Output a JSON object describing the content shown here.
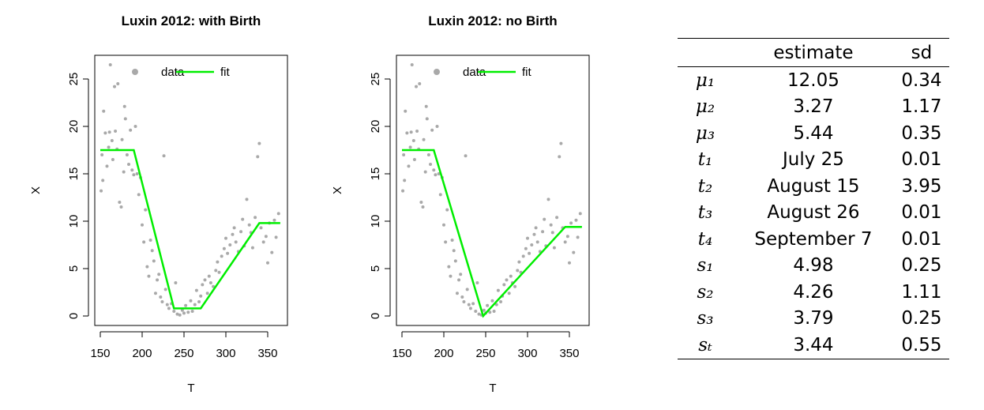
{
  "chart_data": [
    {
      "type": "scatter",
      "title": "Luxin 2012: with Birth",
      "x_label": "T",
      "y_label": "X",
      "xlim": [
        143.4,
        373.6
      ],
      "ylim": [
        -1,
        27.5
      ],
      "xticks": [
        150,
        200,
        250,
        300,
        350
      ],
      "yticks": [
        0,
        5,
        10,
        15,
        20,
        25
      ],
      "legend": "top",
      "series": [
        {
          "name": "data",
          "type": "scatter",
          "color": "#a9a9a9",
          "x": [
            151,
            152,
            153,
            154,
            156,
            158,
            160,
            161,
            162,
            164,
            165,
            167,
            168,
            170,
            171,
            173,
            175,
            176,
            178,
            179,
            180,
            182,
            184,
            186,
            188,
            190,
            192,
            194,
            196,
            198,
            200,
            202,
            204,
            206,
            208,
            210,
            212,
            214,
            216,
            218,
            220,
            222,
            224,
            226,
            228,
            230,
            232,
            235,
            238,
            240,
            242,
            245,
            248,
            250,
            252,
            255,
            258,
            260,
            263,
            265,
            268,
            270,
            272,
            275,
            278,
            280,
            282,
            285,
            288,
            290,
            292,
            295,
            298,
            300,
            302,
            305,
            308,
            310,
            312,
            315,
            318,
            320,
            322,
            325,
            328,
            330,
            332,
            335,
            338,
            340,
            342,
            345,
            348,
            350,
            352,
            355,
            358,
            360,
            363
          ],
          "values": [
            13.2,
            17,
            14.3,
            21.6,
            19.3,
            15.8,
            17.8,
            19.4,
            26.5,
            18.5,
            16.5,
            24.2,
            19.5,
            17.6,
            24.5,
            12,
            11.5,
            18.6,
            15.2,
            22.1,
            20.8,
            17,
            16,
            19.6,
            15.4,
            14.9,
            20,
            15,
            12.8,
            14.6,
            9.6,
            7.8,
            11.2,
            5.2,
            4.2,
            8,
            6.9,
            5.8,
            2.4,
            3.8,
            4.4,
            2,
            1.5,
            16.9,
            2.8,
            1.2,
            0.8,
            1.3,
            0.5,
            3.5,
            0.2,
            0.1,
            0.6,
            0.3,
            1.1,
            0.4,
            1.6,
            0.5,
            1.2,
            2.7,
            1.5,
            2.1,
            3.3,
            3.8,
            2.4,
            4.2,
            3.5,
            3.1,
            4.8,
            5.7,
            4.6,
            6.3,
            7.1,
            8.2,
            6.6,
            7.5,
            8.6,
            9.3,
            7.8,
            6.8,
            8.9,
            10.2,
            7.4,
            12.3,
            9.6,
            8.8,
            7.2,
            10.4,
            16.8,
            18.2,
            9.3,
            7.8,
            8.4,
            5.6,
            9.8,
            6.7,
            10.1,
            8.3,
            10.8
          ]
        },
        {
          "name": "fit",
          "type": "line",
          "color": "#00ee00",
          "x": [
            150,
            190,
            238,
            270,
            340,
            365
          ],
          "values": [
            17.5,
            17.5,
            0.8,
            0.8,
            9.8,
            9.8
          ]
        }
      ]
    },
    {
      "type": "scatter",
      "title": "Luxin 2012: no Birth",
      "x_label": "T",
      "y_label": "X",
      "xlim": [
        143.4,
        373.6
      ],
      "ylim": [
        -1,
        27.5
      ],
      "xticks": [
        150,
        200,
        250,
        300,
        350
      ],
      "yticks": [
        0,
        5,
        10,
        15,
        20,
        25
      ],
      "legend": "top",
      "series": [
        {
          "name": "data",
          "type": "scatter",
          "color": "#a9a9a9",
          "x": [
            151,
            152,
            153,
            154,
            156,
            158,
            160,
            161,
            162,
            164,
            165,
            167,
            168,
            170,
            171,
            173,
            175,
            176,
            178,
            179,
            180,
            182,
            184,
            186,
            188,
            190,
            192,
            194,
            196,
            198,
            200,
            202,
            204,
            206,
            208,
            210,
            212,
            214,
            216,
            218,
            220,
            222,
            224,
            226,
            228,
            230,
            232,
            235,
            238,
            240,
            242,
            245,
            248,
            250,
            252,
            255,
            258,
            260,
            263,
            265,
            268,
            270,
            272,
            275,
            278,
            280,
            282,
            285,
            288,
            290,
            292,
            295,
            298,
            300,
            302,
            305,
            308,
            310,
            312,
            315,
            318,
            320,
            322,
            325,
            328,
            330,
            332,
            335,
            338,
            340,
            342,
            345,
            348,
            350,
            352,
            355,
            358,
            360,
            363
          ],
          "values": [
            13.2,
            17,
            14.3,
            21.6,
            19.3,
            15.8,
            17.8,
            19.4,
            26.5,
            18.5,
            16.5,
            24.2,
            19.5,
            17.6,
            24.5,
            12,
            11.5,
            18.6,
            15.2,
            22.1,
            20.8,
            17,
            16,
            19.6,
            15.4,
            14.9,
            20,
            15,
            12.8,
            14.6,
            9.6,
            7.8,
            11.2,
            5.2,
            4.2,
            8,
            6.9,
            5.8,
            2.4,
            3.8,
            4.4,
            2,
            1.5,
            16.9,
            2.8,
            1.2,
            0.8,
            1.3,
            0.5,
            3.5,
            0.2,
            0.1,
            0.6,
            0.3,
            1.1,
            0.4,
            1.6,
            0.5,
            1.2,
            2.7,
            1.5,
            2.1,
            3.3,
            3.8,
            2.4,
            4.2,
            3.5,
            3.1,
            4.8,
            5.7,
            4.6,
            6.3,
            7.1,
            8.2,
            6.6,
            7.5,
            8.6,
            9.3,
            7.8,
            6.8,
            8.9,
            10.2,
            7.4,
            12.3,
            9.6,
            8.8,
            7.2,
            10.4,
            16.8,
            18.2,
            9.3,
            7.8,
            8.4,
            5.6,
            9.8,
            6.7,
            10.1,
            8.3,
            10.8
          ]
        },
        {
          "name": "fit",
          "type": "line",
          "color": "#00ee00",
          "x": [
            150,
            188,
            247,
            345,
            365
          ],
          "values": [
            17.5,
            17.5,
            0,
            9.4,
            9.4
          ]
        }
      ]
    }
  ],
  "table": {
    "header": [
      "estimate",
      "sd"
    ],
    "rows": [
      [
        "μ₁",
        12.05,
        0.34
      ],
      [
        "μ₂",
        3.27,
        1.17
      ],
      [
        "μ₃",
        5.44,
        0.35
      ],
      [
        "t₁",
        "July 25",
        0.01
      ],
      [
        "t₂",
        "August 15",
        3.95
      ],
      [
        "t₃",
        "August 26",
        0.01
      ],
      [
        "t₄",
        "September 7",
        0.01
      ],
      [
        "s₁",
        4.98,
        0.25
      ],
      [
        "s₂",
        4.26,
        1.11
      ],
      [
        "s₃",
        3.79,
        0.25
      ],
      [
        "sₜ",
        3.44,
        0.55
      ]
    ]
  }
}
